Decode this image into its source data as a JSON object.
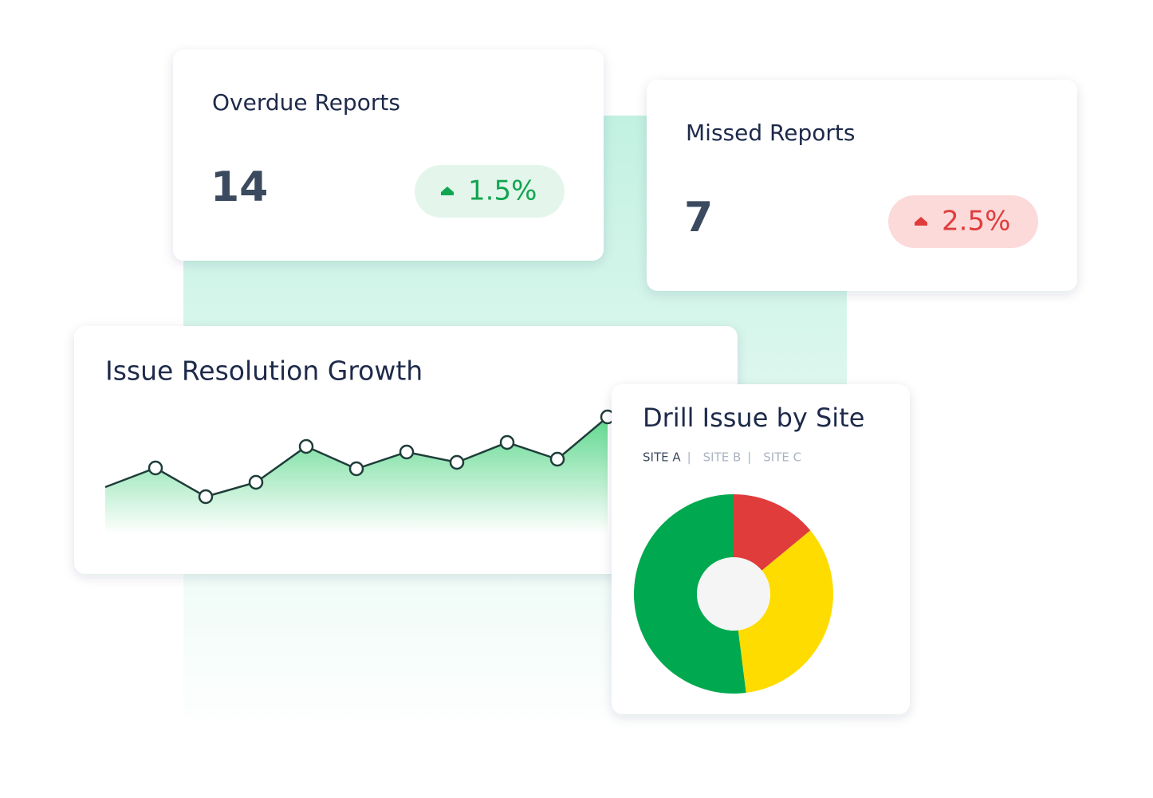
{
  "cards": [
    {
      "title": "Overdue Reports",
      "value": 14,
      "change": {
        "value": 1.5,
        "label": "1.5%"
      },
      "color": "#12a550",
      "badge_color": "#e4f6ec"
    },
    {
      "title": "Missed Reports",
      "value": 7,
      "change": {
        "value": 2.5,
        "label": "2.5%"
      },
      "color": "#e03c3c",
      "badge_color": "#fcdada"
    }
  ],
  "chart_data": [
    {
      "type": "area",
      "title": "Issue Resolution Growth",
      "values": [
        59,
        83,
        47,
        65,
        110,
        82,
        103,
        90,
        115,
        94,
        147
      ],
      "ylim": [
        0,
        160
      ],
      "color": "#1f3d3a",
      "fill": "#5fd88e"
    },
    {
      "type": "donut",
      "title": "Drill Issue by Site",
      "tabs": [
        "SITE A",
        "SITE B",
        "SITE C"
      ],
      "active_tab": 0,
      "values": [
        14,
        34,
        52
      ],
      "colors": [
        "#e03c3c",
        "#ffdc00",
        "#00a94f"
      ]
    }
  ]
}
